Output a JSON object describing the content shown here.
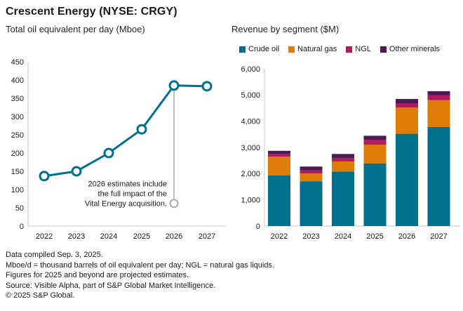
{
  "header": {
    "title": "Crescent Energy (NYSE: CRGY)"
  },
  "footer": {
    "lines": [
      "Data compiled Sep. 3, 2025.",
      "Mboe/d = thousand barrels of oil equivalent per day; NGL = natural gas liquids.",
      "Figures for 2025 and beyond are projected estimates.",
      "Source: Visible Alpha, part of S&P Global Market Intelligence.",
      "© 2025 S&P Global."
    ]
  },
  "colors": {
    "teal": "#00718C",
    "orange": "#DE7C05",
    "magenta": "#B41A5B",
    "purple": "#4A1A50",
    "annotation_gray": "#ABABAB",
    "axis_gray": "#C9C9C9",
    "text": "#1A1A1A"
  },
  "chart_data": [
    {
      "type": "line",
      "title": "Total oil equivalent per day (Mboe)",
      "categories": [
        "2022",
        "2023",
        "2024",
        "2025",
        "2026",
        "2027"
      ],
      "values": [
        137,
        150,
        200,
        265,
        385,
        383
      ],
      "ylim": [
        0,
        450
      ],
      "ytick_step": 50,
      "ytick_labels": [
        "0",
        "50",
        "100",
        "150",
        "200",
        "250",
        "300",
        "350",
        "400",
        "450"
      ],
      "line_color": "#00718C",
      "marker_style": "open-circle",
      "grid": false,
      "annotation": {
        "text_lines": [
          "2026 estimates include",
          "the full impact of the",
          "Vital Energy acquisition."
        ],
        "anchor_category": "2026",
        "anchor_value": 385,
        "marker_value": 62,
        "color": "#ABABAB"
      }
    },
    {
      "type": "bar",
      "subtype": "stacked",
      "title": "Revenue by segment ($M)",
      "categories": [
        "2022",
        "2023",
        "2024",
        "2025",
        "2026",
        "2027"
      ],
      "series": [
        {
          "name": "Crude oil",
          "color": "#00718C",
          "values": [
            1930,
            1710,
            2080,
            2390,
            3520,
            3780
          ]
        },
        {
          "name": "Natural gas",
          "color": "#DE7C05",
          "values": [
            720,
            300,
            385,
            715,
            1000,
            1025
          ]
        },
        {
          "name": "NGL",
          "color": "#B41A5B",
          "values": [
            100,
            115,
            135,
            180,
            150,
            180
          ]
        },
        {
          "name": "Other minerals",
          "color": "#4A1A50",
          "values": [
            120,
            145,
            150,
            160,
            180,
            160
          ]
        }
      ],
      "ylim": [
        0,
        6000
      ],
      "ytick_step": 1000,
      "ytick_labels": [
        "0",
        "1,000",
        "2,000",
        "3,000",
        "4,000",
        "5,000",
        "6,000"
      ],
      "grid": false,
      "legend_position": "top"
    }
  ]
}
